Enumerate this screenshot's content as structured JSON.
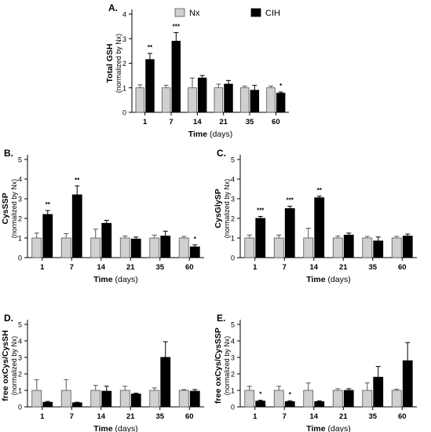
{
  "legend": [
    {
      "label": "Nx",
      "color": "#d0d0d0"
    },
    {
      "label": "CIH",
      "color": "#000000"
    }
  ],
  "x_unit": "(days)",
  "chart_data": [
    {
      "panel": "A.",
      "type": "bar",
      "ylabel": "Total GSH",
      "ylabel_sub": "(normalized by Nx)",
      "xlabel": "Time",
      "categories": [
        "1",
        "7",
        "14",
        "21",
        "35",
        "60"
      ],
      "ylim": [
        0,
        4
      ],
      "yticks": [
        0,
        1,
        2,
        3,
        4
      ],
      "series": [
        {
          "name": "Nx",
          "values": [
            1.0,
            1.0,
            1.0,
            1.0,
            1.0,
            1.0
          ],
          "errors": [
            0.12,
            0.1,
            0.4,
            0.15,
            0.07,
            0.07
          ]
        },
        {
          "name": "CIH",
          "values": [
            2.15,
            2.9,
            1.4,
            1.15,
            0.9,
            0.78
          ],
          "errors": [
            0.25,
            0.35,
            0.1,
            0.15,
            0.2,
            0.05
          ]
        }
      ],
      "significance": [
        "**",
        "***",
        "",
        "",
        "",
        "*"
      ]
    },
    {
      "panel": "B.",
      "type": "bar",
      "ylabel": "CysSSP",
      "ylabel_sub": "(normalized by Nx)",
      "xlabel": "Time",
      "categories": [
        "1",
        "7",
        "14",
        "21",
        "35",
        "60"
      ],
      "ylim": [
        0,
        5
      ],
      "yticks": [
        0,
        1,
        2,
        3,
        4,
        5
      ],
      "series": [
        {
          "name": "Nx",
          "values": [
            1.0,
            1.0,
            1.0,
            1.0,
            1.0,
            1.0
          ],
          "errors": [
            0.25,
            0.22,
            0.45,
            0.1,
            0.15,
            0.08
          ]
        },
        {
          "name": "CIH",
          "values": [
            2.2,
            3.2,
            1.75,
            0.95,
            1.1,
            0.55
          ],
          "errors": [
            0.2,
            0.45,
            0.15,
            0.1,
            0.25,
            0.1
          ]
        }
      ],
      "significance": [
        "**",
        "**",
        "",
        "",
        "",
        "*"
      ]
    },
    {
      "panel": "C.",
      "type": "bar",
      "ylabel": "CysGlySP",
      "ylabel_sub": "(normalized by Nx)",
      "xlabel": "Time",
      "categories": [
        "1",
        "7",
        "14",
        "21",
        "35",
        "60"
      ],
      "ylim": [
        0,
        5
      ],
      "yticks": [
        0,
        1,
        2,
        3,
        4,
        5
      ],
      "series": [
        {
          "name": "Nx",
          "values": [
            1.0,
            1.0,
            1.0,
            1.0,
            1.0,
            1.0
          ],
          "errors": [
            0.15,
            0.15,
            0.5,
            0.1,
            0.08,
            0.08
          ]
        },
        {
          "name": "CIH",
          "values": [
            2.0,
            2.5,
            3.05,
            1.15,
            0.85,
            1.1
          ],
          "errors": [
            0.1,
            0.12,
            0.08,
            0.1,
            0.2,
            0.1
          ]
        }
      ],
      "significance": [
        "***",
        "***",
        "**",
        "",
        "",
        ""
      ]
    },
    {
      "panel": "D.",
      "type": "bar",
      "ylabel": "free oxCys/CysSH",
      "ylabel_sub": "(normalized by Nx)",
      "xlabel": "Time",
      "categories": [
        "1",
        "7",
        "14",
        "21",
        "35",
        "60"
      ],
      "ylim": [
        0,
        5
      ],
      "yticks": [
        0,
        1,
        2,
        3,
        4,
        5
      ],
      "series": [
        {
          "name": "Nx",
          "values": [
            1.0,
            1.0,
            1.0,
            1.0,
            1.0,
            1.0
          ],
          "errors": [
            0.65,
            0.65,
            0.3,
            0.25,
            0.15,
            0.05
          ]
        },
        {
          "name": "CIH",
          "values": [
            0.28,
            0.25,
            0.95,
            0.78,
            3.0,
            0.95
          ],
          "errors": [
            0.05,
            0.03,
            0.3,
            0.05,
            0.95,
            0.1
          ]
        }
      ],
      "significance": [
        "",
        "",
        "",
        "",
        "",
        ""
      ]
    },
    {
      "panel": "E.",
      "type": "bar",
      "ylabel": "free oxCys/CysSSP",
      "ylabel_sub": "(normalized by Nx)",
      "xlabel": "Time",
      "categories": [
        "1",
        "7",
        "14",
        "21",
        "35",
        "60"
      ],
      "ylim": [
        0,
        5
      ],
      "yticks": [
        0,
        1,
        2,
        3,
        4,
        5
      ],
      "series": [
        {
          "name": "Nx",
          "values": [
            1.0,
            1.0,
            1.0,
            1.0,
            1.0,
            1.0
          ],
          "errors": [
            0.25,
            0.25,
            0.45,
            0.1,
            0.45,
            0.07
          ]
        },
        {
          "name": "CIH",
          "values": [
            0.35,
            0.32,
            0.32,
            1.0,
            1.8,
            2.8
          ],
          "errors": [
            0.05,
            0.05,
            0.05,
            0.1,
            0.65,
            1.1
          ]
        }
      ],
      "significance": [
        "*",
        "*",
        "",
        "",
        "",
        ""
      ]
    }
  ]
}
